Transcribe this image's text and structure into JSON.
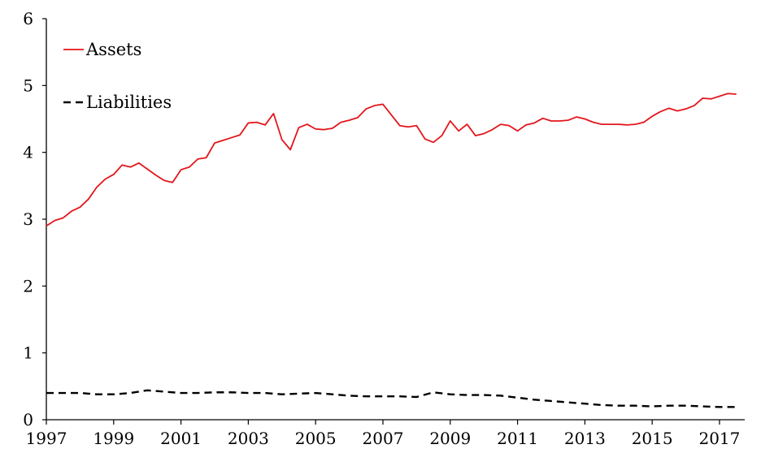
{
  "chart_data": {
    "type": "line",
    "title": "",
    "xlabel": "",
    "ylabel": "",
    "xlim": [
      1997,
      2017.75
    ],
    "ylim": [
      0,
      6
    ],
    "yticks": [
      0,
      1,
      2,
      3,
      4,
      5,
      6
    ],
    "xticks": [
      1997,
      1999,
      2001,
      2003,
      2005,
      2007,
      2009,
      2011,
      2013,
      2015,
      2017
    ],
    "grid": false,
    "legend_position": "top-left",
    "series": [
      {
        "name": "Assets",
        "color": "#e3161c",
        "style": "solid",
        "x": [
          1997.0,
          1997.25,
          1997.5,
          1997.75,
          1998.0,
          1998.25,
          1998.5,
          1998.75,
          1999.0,
          1999.25,
          1999.5,
          1999.75,
          2000.0,
          2000.25,
          2000.5,
          2000.75,
          2001.0,
          2001.25,
          2001.5,
          2001.75,
          2002.0,
          2002.25,
          2002.5,
          2002.75,
          2003.0,
          2003.25,
          2003.5,
          2003.75,
          2004.0,
          2004.25,
          2004.5,
          2004.75,
          2005.0,
          2005.25,
          2005.5,
          2005.75,
          2006.0,
          2006.25,
          2006.5,
          2006.75,
          2007.0,
          2007.25,
          2007.5,
          2007.75,
          2008.0,
          2008.25,
          2008.5,
          2008.75,
          2009.0,
          2009.25,
          2009.5,
          2009.75,
          2010.0,
          2010.25,
          2010.5,
          2010.75,
          2011.0,
          2011.25,
          2011.5,
          2011.75,
          2012.0,
          2012.25,
          2012.5,
          2012.75,
          2013.0,
          2013.25,
          2013.5,
          2013.75,
          2014.0,
          2014.25,
          2014.5,
          2014.75,
          2015.0,
          2015.25,
          2015.5,
          2015.75,
          2016.0,
          2016.25,
          2016.5,
          2016.75,
          2017.0,
          2017.25,
          2017.5
        ],
        "values": [
          2.9,
          2.98,
          3.02,
          3.12,
          3.18,
          3.3,
          3.48,
          3.6,
          3.67,
          3.81,
          3.78,
          3.84,
          3.75,
          3.66,
          3.58,
          3.55,
          3.74,
          3.78,
          3.9,
          3.92,
          4.14,
          4.18,
          4.22,
          4.26,
          4.44,
          4.45,
          4.41,
          4.58,
          4.19,
          4.04,
          4.37,
          4.42,
          4.35,
          4.34,
          4.36,
          4.45,
          4.48,
          4.52,
          4.65,
          4.7,
          4.72,
          4.56,
          4.4,
          4.38,
          4.4,
          4.2,
          4.15,
          4.25,
          4.47,
          4.32,
          4.42,
          4.25,
          4.28,
          4.34,
          4.42,
          4.4,
          4.32,
          4.41,
          4.44,
          4.51,
          4.47,
          4.47,
          4.48,
          4.53,
          4.5,
          4.45,
          4.42,
          4.42,
          4.42,
          4.41,
          4.42,
          4.45,
          4.54,
          4.61,
          4.66,
          4.62,
          4.65,
          4.7,
          4.81,
          4.8,
          4.84,
          4.88,
          4.87
        ]
      },
      {
        "name": "Liabilities",
        "color": "#000000",
        "style": "dashed",
        "x": [
          1997.0,
          1997.5,
          1998.0,
          1998.5,
          1999.0,
          1999.5,
          2000.0,
          2000.5,
          2001.0,
          2001.5,
          2002.0,
          2002.5,
          2003.0,
          2003.5,
          2004.0,
          2004.5,
          2005.0,
          2005.5,
          2006.0,
          2006.5,
          2007.0,
          2007.5,
          2008.0,
          2008.5,
          2009.0,
          2009.5,
          2010.0,
          2010.5,
          2011.0,
          2011.5,
          2012.0,
          2012.5,
          2013.0,
          2013.5,
          2014.0,
          2014.5,
          2015.0,
          2015.5,
          2016.0,
          2016.5,
          2017.0,
          2017.5
        ],
        "values": [
          0.4,
          0.4,
          0.4,
          0.38,
          0.38,
          0.4,
          0.44,
          0.42,
          0.4,
          0.4,
          0.41,
          0.41,
          0.4,
          0.4,
          0.38,
          0.39,
          0.4,
          0.38,
          0.36,
          0.35,
          0.35,
          0.35,
          0.34,
          0.41,
          0.38,
          0.37,
          0.37,
          0.36,
          0.33,
          0.3,
          0.28,
          0.26,
          0.24,
          0.22,
          0.21,
          0.21,
          0.2,
          0.21,
          0.21,
          0.2,
          0.19,
          0.19
        ]
      }
    ]
  }
}
